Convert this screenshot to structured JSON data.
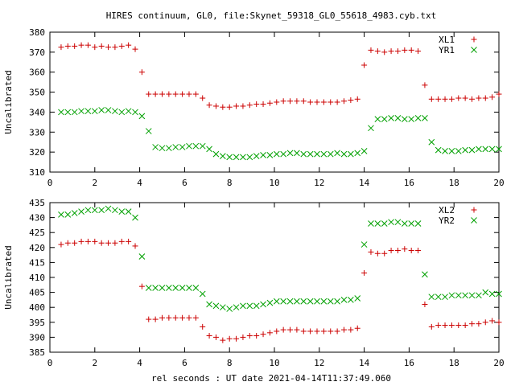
{
  "title": "HIRES continuum, GL0, file:Skynet_59318_GL0_55618_4983.cyb.txt",
  "xlabel": "rel seconds : UT date 2021-04-14T11:37:49.060",
  "colors": {
    "red": "#cc0000",
    "green": "#00a000"
  },
  "chart_data": [
    {
      "type": "scatter",
      "ylabel": "Uncalibrated",
      "xlim": [
        0,
        20
      ],
      "ylim": [
        310,
        380
      ],
      "xticks": [
        0,
        2,
        4,
        6,
        8,
        10,
        12,
        14,
        16,
        18,
        20
      ],
      "yticks": [
        310,
        320,
        330,
        340,
        350,
        360,
        370,
        380
      ],
      "legend_position": "top-right",
      "x": [
        0.5,
        0.8,
        1.1,
        1.4,
        1.7,
        2.0,
        2.3,
        2.6,
        2.9,
        3.2,
        3.5,
        3.8,
        4.1,
        4.4,
        4.7,
        5.0,
        5.3,
        5.6,
        5.9,
        6.2,
        6.5,
        6.8,
        7.1,
        7.4,
        7.7,
        8.0,
        8.3,
        8.6,
        8.9,
        9.2,
        9.5,
        9.8,
        10.1,
        10.4,
        10.7,
        11.0,
        11.3,
        11.6,
        11.9,
        12.2,
        12.5,
        12.8,
        13.1,
        13.4,
        13.7,
        14.0,
        14.3,
        14.6,
        14.9,
        15.2,
        15.5,
        15.8,
        16.1,
        16.4,
        16.7,
        17.0,
        17.3,
        17.6,
        17.9,
        18.2,
        18.5,
        18.8,
        19.1,
        19.4,
        19.7,
        20.0
      ],
      "series": [
        {
          "name": "XL1",
          "marker": "plus",
          "color": "#cc0000",
          "values": [
            372.5,
            373,
            373,
            373.5,
            373.5,
            372.5,
            373,
            372.5,
            372.5,
            373,
            373.5,
            371.5,
            360,
            349,
            349,
            349,
            349,
            349,
            349,
            349,
            349,
            347,
            343.5,
            343,
            342.5,
            342.5,
            343,
            343,
            343.5,
            344,
            344,
            344.5,
            345,
            345.5,
            345.5,
            345.5,
            345.5,
            345,
            345,
            345,
            345,
            345,
            345.5,
            346,
            346.5,
            363.5,
            371,
            370.5,
            370,
            370.5,
            370.5,
            371,
            371,
            370.5,
            353.5,
            346.5,
            346.5,
            346.5,
            346.5,
            347,
            347,
            346.5,
            347,
            347,
            347.5,
            349
          ]
        },
        {
          "name": "YR1",
          "marker": "cross",
          "color": "#00a000",
          "values": [
            340,
            340,
            340,
            340.5,
            340.5,
            340.5,
            341,
            341,
            340.5,
            340,
            340.5,
            340,
            338,
            330.5,
            322.5,
            322,
            322,
            322.5,
            322.5,
            323,
            323,
            323,
            321.5,
            319,
            318,
            317.5,
            317.5,
            317.5,
            317.5,
            318,
            318.5,
            318.5,
            319,
            319,
            319.5,
            319.5,
            319,
            319,
            319,
            319,
            319,
            319.5,
            319,
            319,
            319.5,
            320.5,
            332,
            336.5,
            336.5,
            337,
            337,
            336.5,
            336.5,
            337,
            337,
            325,
            321,
            320.5,
            320.5,
            320.5,
            321,
            321,
            321.5,
            321.5,
            321.5,
            321.5
          ]
        }
      ]
    },
    {
      "type": "scatter",
      "ylabel": "Uncalibrated",
      "xlim": [
        0,
        20
      ],
      "ylim": [
        385,
        435
      ],
      "xticks": [
        0,
        2,
        4,
        6,
        8,
        10,
        12,
        14,
        16,
        18,
        20
      ],
      "yticks": [
        385,
        390,
        395,
        400,
        405,
        410,
        415,
        420,
        425,
        430,
        435
      ],
      "legend_position": "top-right",
      "x": [
        0.5,
        0.8,
        1.1,
        1.4,
        1.7,
        2.0,
        2.3,
        2.6,
        2.9,
        3.2,
        3.5,
        3.8,
        4.1,
        4.4,
        4.7,
        5.0,
        5.3,
        5.6,
        5.9,
        6.2,
        6.5,
        6.8,
        7.1,
        7.4,
        7.7,
        8.0,
        8.3,
        8.6,
        8.9,
        9.2,
        9.5,
        9.8,
        10.1,
        10.4,
        10.7,
        11.0,
        11.3,
        11.6,
        11.9,
        12.2,
        12.5,
        12.8,
        13.1,
        13.4,
        13.7,
        14.0,
        14.3,
        14.6,
        14.9,
        15.2,
        15.5,
        15.8,
        16.1,
        16.4,
        16.7,
        17.0,
        17.3,
        17.6,
        17.9,
        18.2,
        18.5,
        18.8,
        19.1,
        19.4,
        19.7,
        20.0
      ],
      "series": [
        {
          "name": "XL2",
          "marker": "plus",
          "color": "#cc0000",
          "values": [
            421,
            421.5,
            421.5,
            422,
            422,
            422,
            421.5,
            421.5,
            421.5,
            422,
            422,
            420.5,
            407,
            396,
            396,
            396.5,
            396.5,
            396.5,
            396.5,
            396.5,
            396.5,
            393.5,
            390.5,
            390,
            389,
            389.5,
            389.5,
            390,
            390.5,
            390.5,
            391,
            391.5,
            392,
            392.5,
            392.5,
            392.5,
            392,
            392,
            392,
            392,
            392,
            392,
            392.5,
            392.5,
            393,
            411.5,
            418.5,
            418,
            418,
            419,
            419,
            419.5,
            419,
            419,
            401,
            393.5,
            394,
            394,
            394,
            394,
            394,
            394.5,
            394.5,
            395,
            395.5,
            395
          ]
        },
        {
          "name": "YR2",
          "marker": "cross",
          "color": "#00a000",
          "values": [
            431,
            431,
            431.5,
            432,
            432.5,
            432.5,
            432.5,
            433,
            432.5,
            432,
            432,
            430,
            417,
            406.5,
            406.5,
            406.5,
            406.5,
            406.5,
            406.5,
            406.5,
            406.5,
            404.5,
            401,
            400.5,
            400,
            399.5,
            400,
            400.5,
            400.5,
            400.5,
            401,
            401.5,
            402,
            402,
            402,
            402,
            402,
            402,
            402,
            402,
            402,
            402,
            402.5,
            402.5,
            403,
            421,
            428,
            428,
            428,
            428.5,
            428.5,
            428,
            428,
            428,
            411,
            403.5,
            403.5,
            403.5,
            404,
            404,
            404,
            404,
            404,
            405,
            404.5,
            404.5
          ]
        }
      ]
    }
  ]
}
